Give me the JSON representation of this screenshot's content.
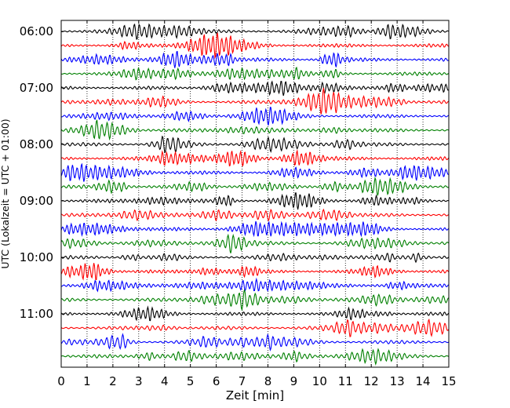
{
  "chart_data": {
    "type": "line",
    "title": "",
    "xlabel": "Zeit  [min]",
    "ylabel": "UTC (Lokalzeit = UTC + 01:00)",
    "xlim": [
      0,
      15
    ],
    "x_ticks": [
      "0",
      "1",
      "2",
      "3",
      "4",
      "5",
      "6",
      "7",
      "8",
      "9",
      "10",
      "11",
      "12",
      "13",
      "14",
      "15"
    ],
    "y_ticks": [
      "06:00",
      "07:00",
      "08:00",
      "09:00",
      "10:00",
      "11:00"
    ],
    "grid": "vertical-dotted",
    "legend": "none",
    "trace_colors": [
      "#000000",
      "#ff0000",
      "#0000ff",
      "#008000"
    ],
    "traces": [
      {
        "start": "06:00",
        "color": "#000000"
      },
      {
        "start": "06:15",
        "color": "#ff0000"
      },
      {
        "start": "06:30",
        "color": "#0000ff"
      },
      {
        "start": "06:45",
        "color": "#008000"
      },
      {
        "start": "07:00",
        "color": "#000000"
      },
      {
        "start": "07:15",
        "color": "#ff0000"
      },
      {
        "start": "07:30",
        "color": "#0000ff"
      },
      {
        "start": "07:45",
        "color": "#008000"
      },
      {
        "start": "08:00",
        "color": "#000000"
      },
      {
        "start": "08:15",
        "color": "#ff0000"
      },
      {
        "start": "08:30",
        "color": "#0000ff"
      },
      {
        "start": "08:45",
        "color": "#008000"
      },
      {
        "start": "09:00",
        "color": "#000000"
      },
      {
        "start": "09:15",
        "color": "#ff0000"
      },
      {
        "start": "09:30",
        "color": "#0000ff"
      },
      {
        "start": "09:45",
        "color": "#008000"
      },
      {
        "start": "10:00",
        "color": "#000000"
      },
      {
        "start": "10:15",
        "color": "#ff0000"
      },
      {
        "start": "10:30",
        "color": "#0000ff"
      },
      {
        "start": "10:45",
        "color": "#008000"
      },
      {
        "start": "11:00",
        "color": "#000000"
      },
      {
        "start": "11:15",
        "color": "#ff0000"
      },
      {
        "start": "11:30",
        "color": "#0000ff"
      },
      {
        "start": "11:45",
        "color": "#008000"
      }
    ]
  }
}
